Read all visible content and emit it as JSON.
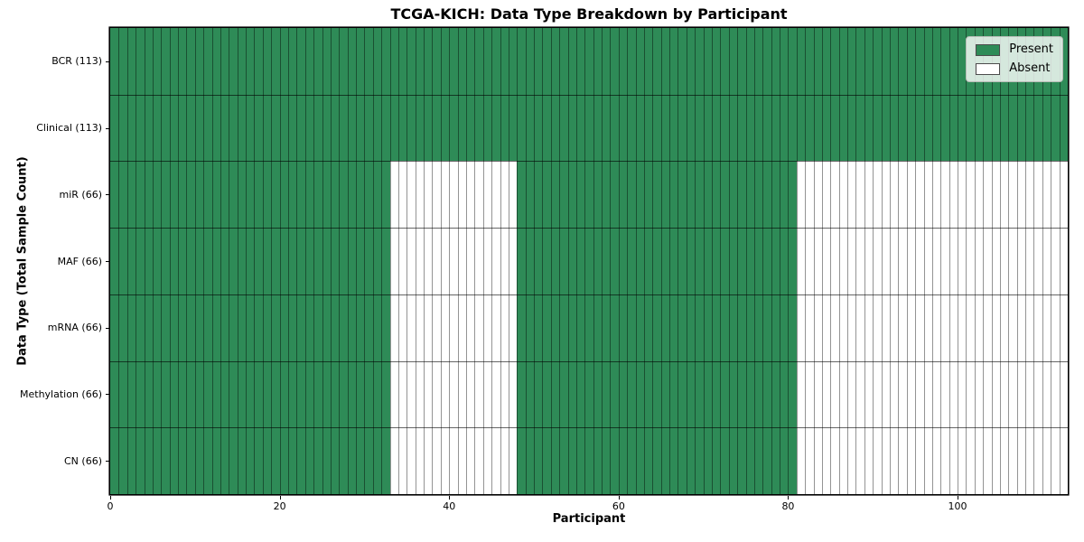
{
  "chart_data": {
    "type": "heatmap",
    "title": "TCGA-KICH: Data Type Breakdown by Participant",
    "xlabel": "Participant",
    "ylabel": "Data Type (Total Sample Count)",
    "x_min": 0,
    "x_max": 113,
    "x_ticks": [
      0,
      20,
      40,
      60,
      80,
      100
    ],
    "grid": "per-participant cell edges, row separators",
    "colors": {
      "present": "#2e8b57",
      "absent": "#ffffff"
    },
    "legend": {
      "position": "upper right",
      "entries": [
        {
          "label": "Present",
          "state": "present"
        },
        {
          "label": "Absent",
          "state": "absent"
        }
      ]
    },
    "rows": [
      {
        "label": "BCR (113)",
        "total": 113,
        "segments": [
          {
            "start": 0,
            "end": 113,
            "state": "present"
          }
        ]
      },
      {
        "label": "Clinical (113)",
        "total": 113,
        "segments": [
          {
            "start": 0,
            "end": 113,
            "state": "present"
          }
        ]
      },
      {
        "label": "miR (66)",
        "total": 66,
        "segments": [
          {
            "start": 0,
            "end": 33,
            "state": "present"
          },
          {
            "start": 33,
            "end": 48,
            "state": "absent"
          },
          {
            "start": 48,
            "end": 81,
            "state": "present"
          },
          {
            "start": 81,
            "end": 113,
            "state": "absent"
          }
        ]
      },
      {
        "label": "MAF (66)",
        "total": 66,
        "segments": [
          {
            "start": 0,
            "end": 33,
            "state": "present"
          },
          {
            "start": 33,
            "end": 48,
            "state": "absent"
          },
          {
            "start": 48,
            "end": 81,
            "state": "present"
          },
          {
            "start": 81,
            "end": 113,
            "state": "absent"
          }
        ]
      },
      {
        "label": "mRNA (66)",
        "total": 66,
        "segments": [
          {
            "start": 0,
            "end": 33,
            "state": "present"
          },
          {
            "start": 33,
            "end": 48,
            "state": "absent"
          },
          {
            "start": 48,
            "end": 81,
            "state": "present"
          },
          {
            "start": 81,
            "end": 113,
            "state": "absent"
          }
        ]
      },
      {
        "label": "Methylation (66)",
        "total": 66,
        "segments": [
          {
            "start": 0,
            "end": 33,
            "state": "present"
          },
          {
            "start": 33,
            "end": 48,
            "state": "absent"
          },
          {
            "start": 48,
            "end": 81,
            "state": "present"
          },
          {
            "start": 81,
            "end": 113,
            "state": "absent"
          }
        ]
      },
      {
        "label": "CN (66)",
        "total": 66,
        "segments": [
          {
            "start": 0,
            "end": 33,
            "state": "present"
          },
          {
            "start": 33,
            "end": 48,
            "state": "absent"
          },
          {
            "start": 48,
            "end": 81,
            "state": "present"
          },
          {
            "start": 81,
            "end": 113,
            "state": "absent"
          }
        ]
      }
    ]
  }
}
